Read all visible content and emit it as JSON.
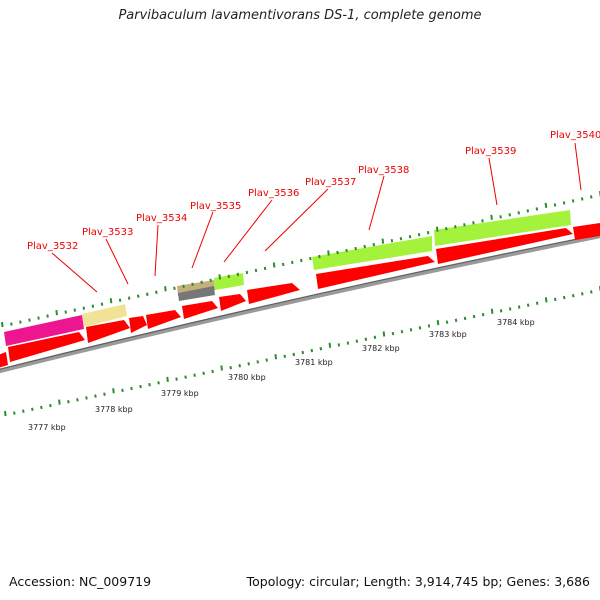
{
  "title": "Parvibaculum lavamentivorans DS-1, complete genome",
  "footer": {
    "accession": "Accession: NC_009719",
    "summary": "Topology: circular; Length: 3,914,745 bp; Genes: 3,686"
  },
  "colors": {
    "cds": "#ff0000",
    "backbone": "#8a8a8a",
    "tick": "#2e8b2e",
    "label": "#ee0000"
  },
  "genes": [
    {
      "label": "Plav_3532"
    },
    {
      "label": "Plav_3533"
    },
    {
      "label": "Plav_3534"
    },
    {
      "label": "Plav_3535"
    },
    {
      "label": "Plav_3536"
    },
    {
      "label": "Plav_3537"
    },
    {
      "label": "Plav_3538"
    },
    {
      "label": "Plav_3539"
    },
    {
      "label": "Plav_3540"
    }
  ],
  "kbp_labels": [
    "3777 kbp",
    "3778 kbp",
    "3779 kbp",
    "3780 kbp",
    "3781 kbp",
    "3782 kbp",
    "3783 kbp",
    "3784 kbp"
  ],
  "feature_colors": [
    "#ee1690",
    "#f2e296",
    "#a4f23c",
    "#c4b07a",
    "#777777",
    "#a4f23c",
    "#a4f23c"
  ]
}
